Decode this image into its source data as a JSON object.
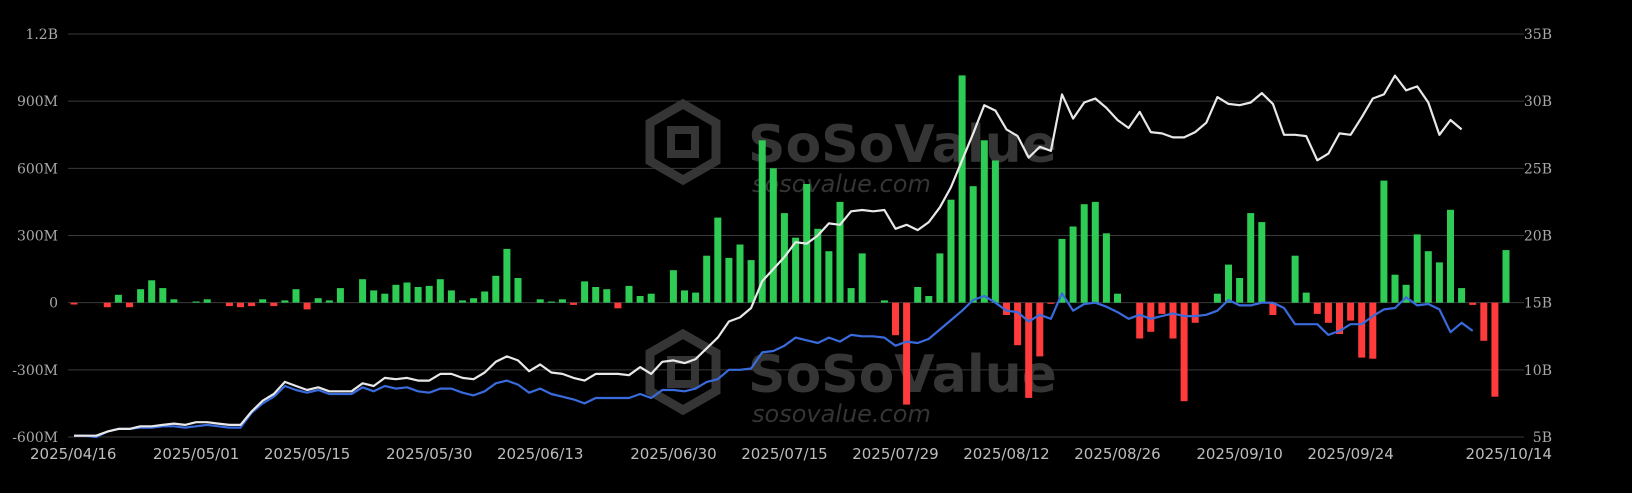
{
  "watermark": {
    "brand": "SoSoValue",
    "url": "sosovalue.com"
  },
  "chart_data": {
    "type": "bar+line",
    "title": "",
    "xlabel": "",
    "ylabel_left": "",
    "ylabel_right": "",
    "left_axis": {
      "min": -600000000,
      "max": 1200000000,
      "ticks": [
        -600000000,
        -300000000,
        0,
        300000000,
        600000000,
        900000000,
        1200000000
      ],
      "tick_labels": [
        "-600M",
        "-300M",
        "0",
        "300M",
        "600M",
        "900M",
        "1.2B"
      ]
    },
    "right_axis": {
      "min": 5000000000,
      "max": 35000000000,
      "ticks": [
        5000000000,
        10000000000,
        15000000000,
        20000000000,
        25000000000,
        30000000000,
        35000000000
      ],
      "tick_labels": [
        "5B",
        "10B",
        "15B",
        "20B",
        "25B",
        "30B",
        "35B"
      ]
    },
    "x_tick_labels": [
      "2025/04/16",
      "2025/05/01",
      "2025/05/15",
      "2025/05/30",
      "2025/06/13",
      "2025/06/30",
      "2025/07/15",
      "2025/07/29",
      "2025/08/12",
      "2025/08/26",
      "2025/09/10",
      "2025/09/24",
      "2025/10/14"
    ],
    "x_tick_indices": [
      0,
      11,
      21,
      32,
      42,
      54,
      64,
      74,
      84,
      94,
      105,
      115,
      129
    ],
    "grid": true,
    "colors": {
      "inflow": "#2ecc55",
      "outflow": "#ff3b3b",
      "line_white": "#e8e8e8",
      "line_blue": "#3a6bdc",
      "grid": "#3a3a3a"
    },
    "series": [
      {
        "kind": "bar",
        "axis": "left",
        "values_millions": [
          -8,
          0,
          0,
          -20,
          35,
          -20,
          60,
          100,
          65,
          15,
          0,
          5,
          15,
          0,
          -15,
          -20,
          -15,
          15,
          -15,
          10,
          60,
          -30,
          20,
          10,
          65,
          0,
          105,
          55,
          40,
          80,
          90,
          70,
          75,
          105,
          55,
          10,
          20,
          50,
          120,
          240,
          110,
          0,
          15,
          5,
          15,
          -10,
          95,
          70,
          60,
          -25,
          75,
          30,
          40,
          0,
          145,
          55,
          45,
          210,
          380,
          200,
          260,
          190,
          725,
          600,
          400,
          290,
          530,
          330,
          230,
          450,
          65,
          220,
          0,
          10,
          -145,
          -455,
          70,
          30,
          220,
          460,
          1015,
          520,
          725,
          635,
          -55,
          -190,
          -425,
          -240,
          -5,
          285,
          340,
          440,
          450,
          310,
          40,
          0,
          -160,
          -130,
          -50,
          -160,
          -440,
          -90,
          0,
          40,
          170,
          110,
          400,
          360,
          -55,
          0,
          210,
          45,
          -50,
          -90,
          -140,
          -80,
          -245,
          -250,
          545,
          125,
          80,
          305,
          230,
          180,
          415,
          65,
          -10,
          -170,
          -420,
          235
        ]
      },
      {
        "kind": "line",
        "axis": "right",
        "color": "white",
        "values_billions": [
          5.1,
          5.1,
          5.1,
          5.4,
          5.6,
          5.6,
          5.8,
          5.8,
          5.9,
          6.0,
          5.9,
          6.1,
          6.1,
          6.0,
          5.9,
          5.9,
          6.9,
          7.7,
          8.2,
          9.1,
          8.8,
          8.5,
          8.7,
          8.4,
          8.4,
          8.4,
          9.0,
          8.8,
          9.4,
          9.3,
          9.4,
          9.2,
          9.2,
          9.7,
          9.7,
          9.4,
          9.3,
          9.8,
          10.6,
          11.0,
          10.7,
          9.9,
          10.4,
          9.8,
          9.7,
          9.4,
          9.2,
          9.7,
          9.7,
          9.7,
          9.6,
          10.2,
          9.7,
          10.6,
          10.7,
          10.5,
          10.8,
          11.6,
          12.4,
          13.6,
          13.9,
          14.6,
          16.6,
          17.5,
          18.4,
          19.5,
          19.4,
          20.0,
          20.9,
          20.8,
          21.8,
          21.9,
          21.8,
          21.9,
          20.5,
          20.8,
          20.4,
          21.0,
          22.1,
          23.6,
          25.6,
          27.6,
          29.7,
          29.3,
          27.9,
          27.4,
          25.8,
          26.6,
          26.3,
          30.5,
          28.7,
          29.9,
          30.2,
          29.5,
          28.6,
          28.0,
          29.2,
          27.7,
          27.6,
          27.3,
          27.3,
          27.7,
          28.4,
          30.3,
          29.8,
          29.7,
          29.9,
          30.6,
          29.8,
          27.5,
          27.5,
          27.4,
          25.6,
          26.1,
          27.6,
          27.5,
          28.8,
          30.2,
          30.5,
          31.9,
          30.8,
          31.1,
          29.9,
          27.5,
          28.6,
          27.9
        ]
      },
      {
        "kind": "line",
        "axis": "right",
        "color": "blue",
        "values_billions": [
          5.1,
          5.1,
          5.0,
          5.4,
          5.6,
          5.6,
          5.7,
          5.7,
          5.8,
          5.8,
          5.7,
          5.8,
          5.9,
          5.8,
          5.7,
          5.7,
          6.8,
          7.5,
          8.0,
          8.8,
          8.5,
          8.3,
          8.5,
          8.2,
          8.2,
          8.2,
          8.7,
          8.4,
          8.8,
          8.6,
          8.7,
          8.4,
          8.3,
          8.6,
          8.6,
          8.3,
          8.1,
          8.4,
          9.0,
          9.2,
          8.9,
          8.3,
          8.6,
          8.2,
          8.0,
          7.8,
          7.5,
          7.9,
          7.9,
          7.9,
          7.9,
          8.2,
          7.9,
          8.5,
          8.5,
          8.4,
          8.6,
          9.1,
          9.3,
          10.0,
          10.0,
          10.1,
          11.3,
          11.4,
          11.8,
          12.4,
          12.2,
          12.0,
          12.4,
          12.1,
          12.6,
          12.5,
          12.5,
          12.4,
          11.8,
          12.1,
          12.0,
          12.3,
          13.0,
          13.7,
          14.4,
          15.2,
          15.5,
          15.0,
          14.4,
          14.3,
          13.6,
          14.1,
          13.8,
          15.7,
          14.4,
          14.9,
          15.0,
          14.7,
          14.3,
          13.8,
          14.1,
          13.8,
          14.0,
          14.2,
          14.0,
          14.0,
          14.1,
          14.4,
          15.2,
          14.8,
          14.8,
          15.0,
          15.0,
          14.6,
          13.4,
          13.4,
          13.4,
          12.6,
          12.9,
          13.4,
          13.4,
          14.0,
          14.5,
          14.6,
          15.4,
          14.8,
          14.9,
          14.5,
          12.8,
          13.5,
          12.9
        ]
      }
    ]
  }
}
